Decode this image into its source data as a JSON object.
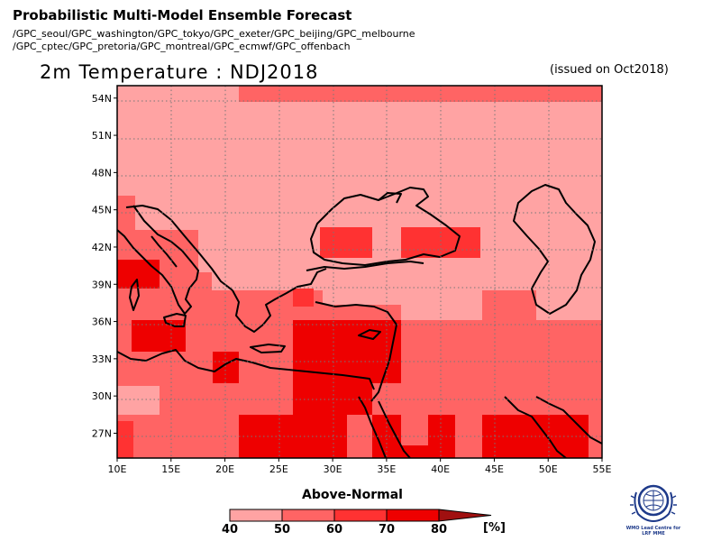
{
  "header": {
    "title": "Probabilistic Multi-Model Ensemble Forecast",
    "centres_line1": "/GPC_seoul/GPC_washington/GPC_tokyo/GPC_exeter/GPC_beijing/GPC_melbourne",
    "centres_line2": "/GPC_cptec/GPC_pretoria/GPC_montreal/GPC_ecmwf/GPC_offenbach"
  },
  "map": {
    "title": "2m Temperature : NDJ2018",
    "issued": "(issued on Oct2018)",
    "lon_range": [
      10,
      55
    ],
    "lat_range": [
      25,
      55
    ],
    "lon_ticks": [
      "10E",
      "15E",
      "20E",
      "25E",
      "30E",
      "35E",
      "40E",
      "45E",
      "50E",
      "55E"
    ],
    "lat_ticks": [
      "27N",
      "30N",
      "33N",
      "36N",
      "39N",
      "42N",
      "45N",
      "48N",
      "51N",
      "54N"
    ],
    "grid": "dotted"
  },
  "legend": {
    "title": "Above-Normal",
    "unit": "[%]",
    "labels": [
      "40",
      "50",
      "60",
      "70",
      "80"
    ],
    "colors": [
      "#ffa3a3",
      "#ff6464",
      "#ff3232",
      "#ee0000",
      "#a01010"
    ]
  },
  "logo": {
    "line1": "WMO Lead Centre for",
    "line2": "LRF MME"
  }
}
